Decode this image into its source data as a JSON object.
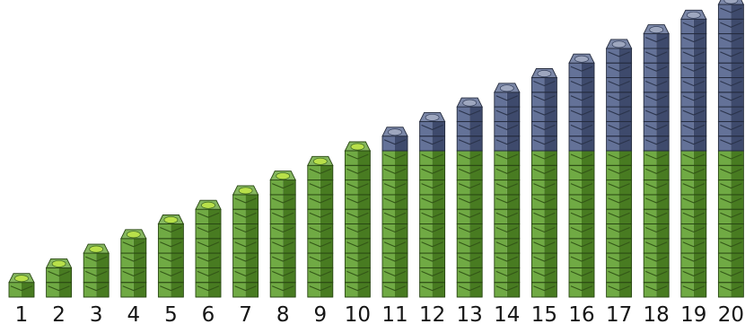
{
  "figure": {
    "description_type": "linking-cube towers",
    "ten_color": "#5c9e2a",
    "extra_color": "#4f5f8a",
    "towers": [
      {
        "label": "1",
        "cubes": 1
      },
      {
        "label": "2",
        "cubes": 2
      },
      {
        "label": "3",
        "cubes": 3
      },
      {
        "label": "4",
        "cubes": 4
      },
      {
        "label": "5",
        "cubes": 5
      },
      {
        "label": "6",
        "cubes": 6
      },
      {
        "label": "7",
        "cubes": 7
      },
      {
        "label": "8",
        "cubes": 8
      },
      {
        "label": "9",
        "cubes": 9
      },
      {
        "label": "10",
        "cubes": 10
      },
      {
        "label": "11",
        "cubes": 11
      },
      {
        "label": "12",
        "cubes": 12
      },
      {
        "label": "13",
        "cubes": 13
      },
      {
        "label": "14",
        "cubes": 14
      },
      {
        "label": "15",
        "cubes": 15
      },
      {
        "label": "16",
        "cubes": 16
      },
      {
        "label": "17",
        "cubes": 17
      },
      {
        "label": "18",
        "cubes": 18
      },
      {
        "label": "19",
        "cubes": 19
      },
      {
        "label": "20",
        "cubes": 20
      }
    ]
  }
}
